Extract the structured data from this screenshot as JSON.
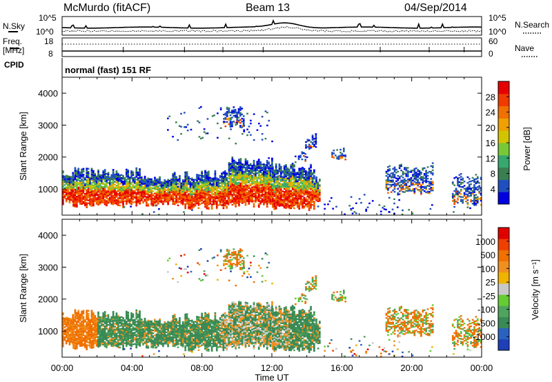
{
  "header": {
    "station": "McMurdo (fitACF)",
    "beam": "Beam 13",
    "date": "04/Sep/2014",
    "mode": "normal (fast) 151 RF"
  },
  "status_panel": {
    "nsky_label": "N.Sky",
    "nsearch_label": "N.Search",
    "noise_ticks": [
      "10^5",
      "10^0"
    ],
    "freq_label": "Freq.",
    "freq_unit": "[MHz]",
    "freq_ticks": [
      "18",
      "8"
    ],
    "nave_label": "Nave",
    "nave_ticks": [
      "60",
      "0"
    ],
    "cpid_label": "CPID"
  },
  "chart_data": [
    {
      "type": "heatmap",
      "name": "power",
      "ylabel": "Slant Range [km]",
      "ylim": [
        180,
        4500
      ],
      "yticks": [
        1000,
        2000,
        3000,
        4000
      ],
      "xlim": [
        0,
        24
      ],
      "colorbar": {
        "label": "Power [dB]",
        "tick_labels": [
          "4",
          "8",
          "12",
          "16",
          "20",
          "24",
          "28"
        ],
        "colors": [
          "#0000e0",
          "#2050c0",
          "#3a7f4f",
          "#37a86e",
          "#79c837",
          "#d3c400",
          "#f0a000",
          "#f07000",
          "#f03a00",
          "#e60000"
        ]
      }
    },
    {
      "type": "heatmap",
      "name": "velocity",
      "ylabel": "Slant Range [km]",
      "ylim": [
        180,
        4500
      ],
      "yticks": [
        1000,
        2000,
        3000,
        4000
      ],
      "xlim": [
        0,
        24
      ],
      "xlabel": "Time UT",
      "xtick_labels": [
        "00:00",
        "04:00",
        "08:00",
        "12:00",
        "16:00",
        "20:00",
        "00:00"
      ],
      "colorbar": {
        "label": "Velocity [m s⁻¹]",
        "tick_labels": [
          "1000",
          "500",
          "100",
          "25",
          "-25",
          "-100",
          "-500",
          "-1000"
        ],
        "colors": [
          "#1e3fb8",
          "#2a62c0",
          "#3a8a56",
          "#4fa55d",
          "#66cc33",
          "#c8c8c8",
          "#f0b400",
          "#f09020",
          "#f07000",
          "#f04000",
          "#e00000"
        ]
      }
    }
  ]
}
